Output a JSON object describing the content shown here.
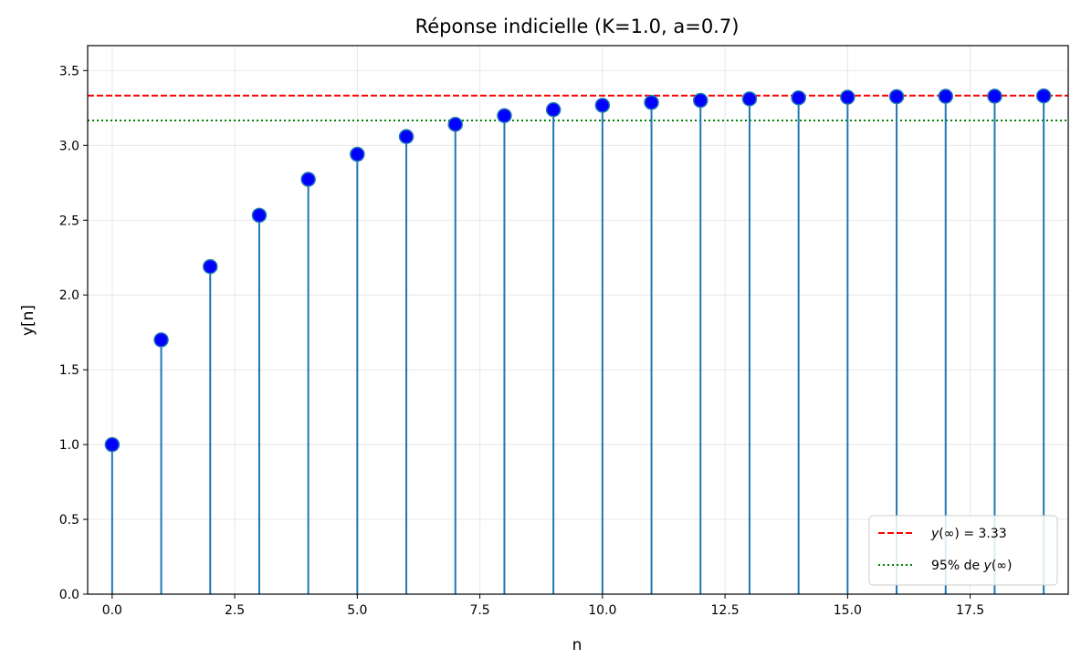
{
  "chart_data": {
    "type": "stem",
    "title": "Réponse indicielle (K=1.0, a=0.7)",
    "xlabel": "n",
    "ylabel": "y[n]",
    "xlim": [
      -0.5,
      19.5
    ],
    "ylim": [
      0,
      3.667
    ],
    "xticks": [
      0,
      2.5,
      5,
      7.5,
      10,
      12.5,
      15,
      17.5
    ],
    "xtick_labels": [
      "0.0",
      "2.5",
      "5.0",
      "7.5",
      "10.0",
      "12.5",
      "15.0",
      "17.5"
    ],
    "yticks": [
      0,
      0.5,
      1,
      1.5,
      2,
      2.5,
      3,
      3.5
    ],
    "ytick_labels": [
      "0.0",
      "0.5",
      "1.0",
      "1.5",
      "2.0",
      "2.5",
      "3.0",
      "3.5"
    ],
    "grid": true,
    "legend_position": "bottom-right",
    "colors": {
      "stem": "#1f77b4",
      "marker_fill": "#0000ff",
      "marker_edge": "#1f77b4",
      "final_value": "#ff0000",
      "threshold_95": "#008000"
    },
    "series": {
      "x": [
        0,
        1,
        2,
        3,
        4,
        5,
        6,
        7,
        8,
        9,
        10,
        11,
        12,
        13,
        14,
        15,
        16,
        17,
        18,
        19
      ],
      "values": [
        1.0,
        1.7,
        2.19,
        2.533,
        2.773,
        2.941,
        3.059,
        3.141,
        3.199,
        3.239,
        3.268,
        3.287,
        3.301,
        3.311,
        3.318,
        3.322,
        3.326,
        3.328,
        3.329,
        3.331
      ]
    },
    "reference_lines": [
      {
        "label": "y(∞) = 3.33",
        "label_var": "y",
        "label_rest": "(∞) = 3.33",
        "value": 3.333,
        "style": "dashed",
        "color": "#ff0000"
      },
      {
        "label": "95% de y(∞)",
        "label_prefix": "95% de ",
        "label_var": "y",
        "label_rest": "(∞)",
        "value": 3.167,
        "style": "dotted",
        "color": "#008000"
      }
    ]
  }
}
